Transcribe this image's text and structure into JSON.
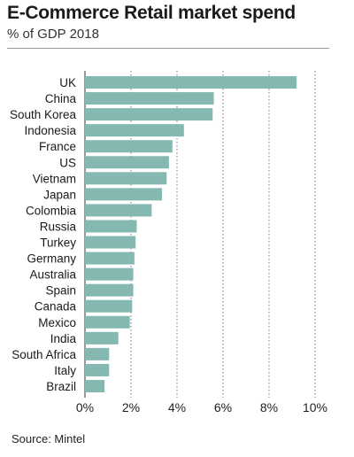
{
  "chart_data": {
    "type": "bar",
    "orientation": "horizontal",
    "title": "E-Commerce Retail market spend",
    "subtitle": "% of GDP 2018",
    "categories": [
      "UK",
      "China",
      "South Korea",
      "Indonesia",
      "France",
      "US",
      "Vietnam",
      "Japan",
      "Colombia",
      "Russia",
      "Turkey",
      "Germany",
      "Australia",
      "Spain",
      "Canada",
      "Mexico",
      "India",
      "South Africa",
      "Italy",
      "Brazil"
    ],
    "values": [
      9.2,
      5.6,
      5.55,
      4.3,
      3.8,
      3.65,
      3.55,
      3.35,
      2.9,
      2.25,
      2.2,
      2.15,
      2.1,
      2.1,
      2.05,
      1.95,
      1.45,
      1.05,
      1.05,
      0.85
    ],
    "xlim": [
      0,
      10
    ],
    "ticks": [
      "0%",
      "2%",
      "4%",
      "6%",
      "8%",
      "10%"
    ],
    "tick_values": [
      0,
      2,
      4,
      6,
      8,
      10
    ],
    "grid": "dotted-vertical",
    "bar_color": "#86b8b2",
    "source": "Source: Mintel"
  }
}
